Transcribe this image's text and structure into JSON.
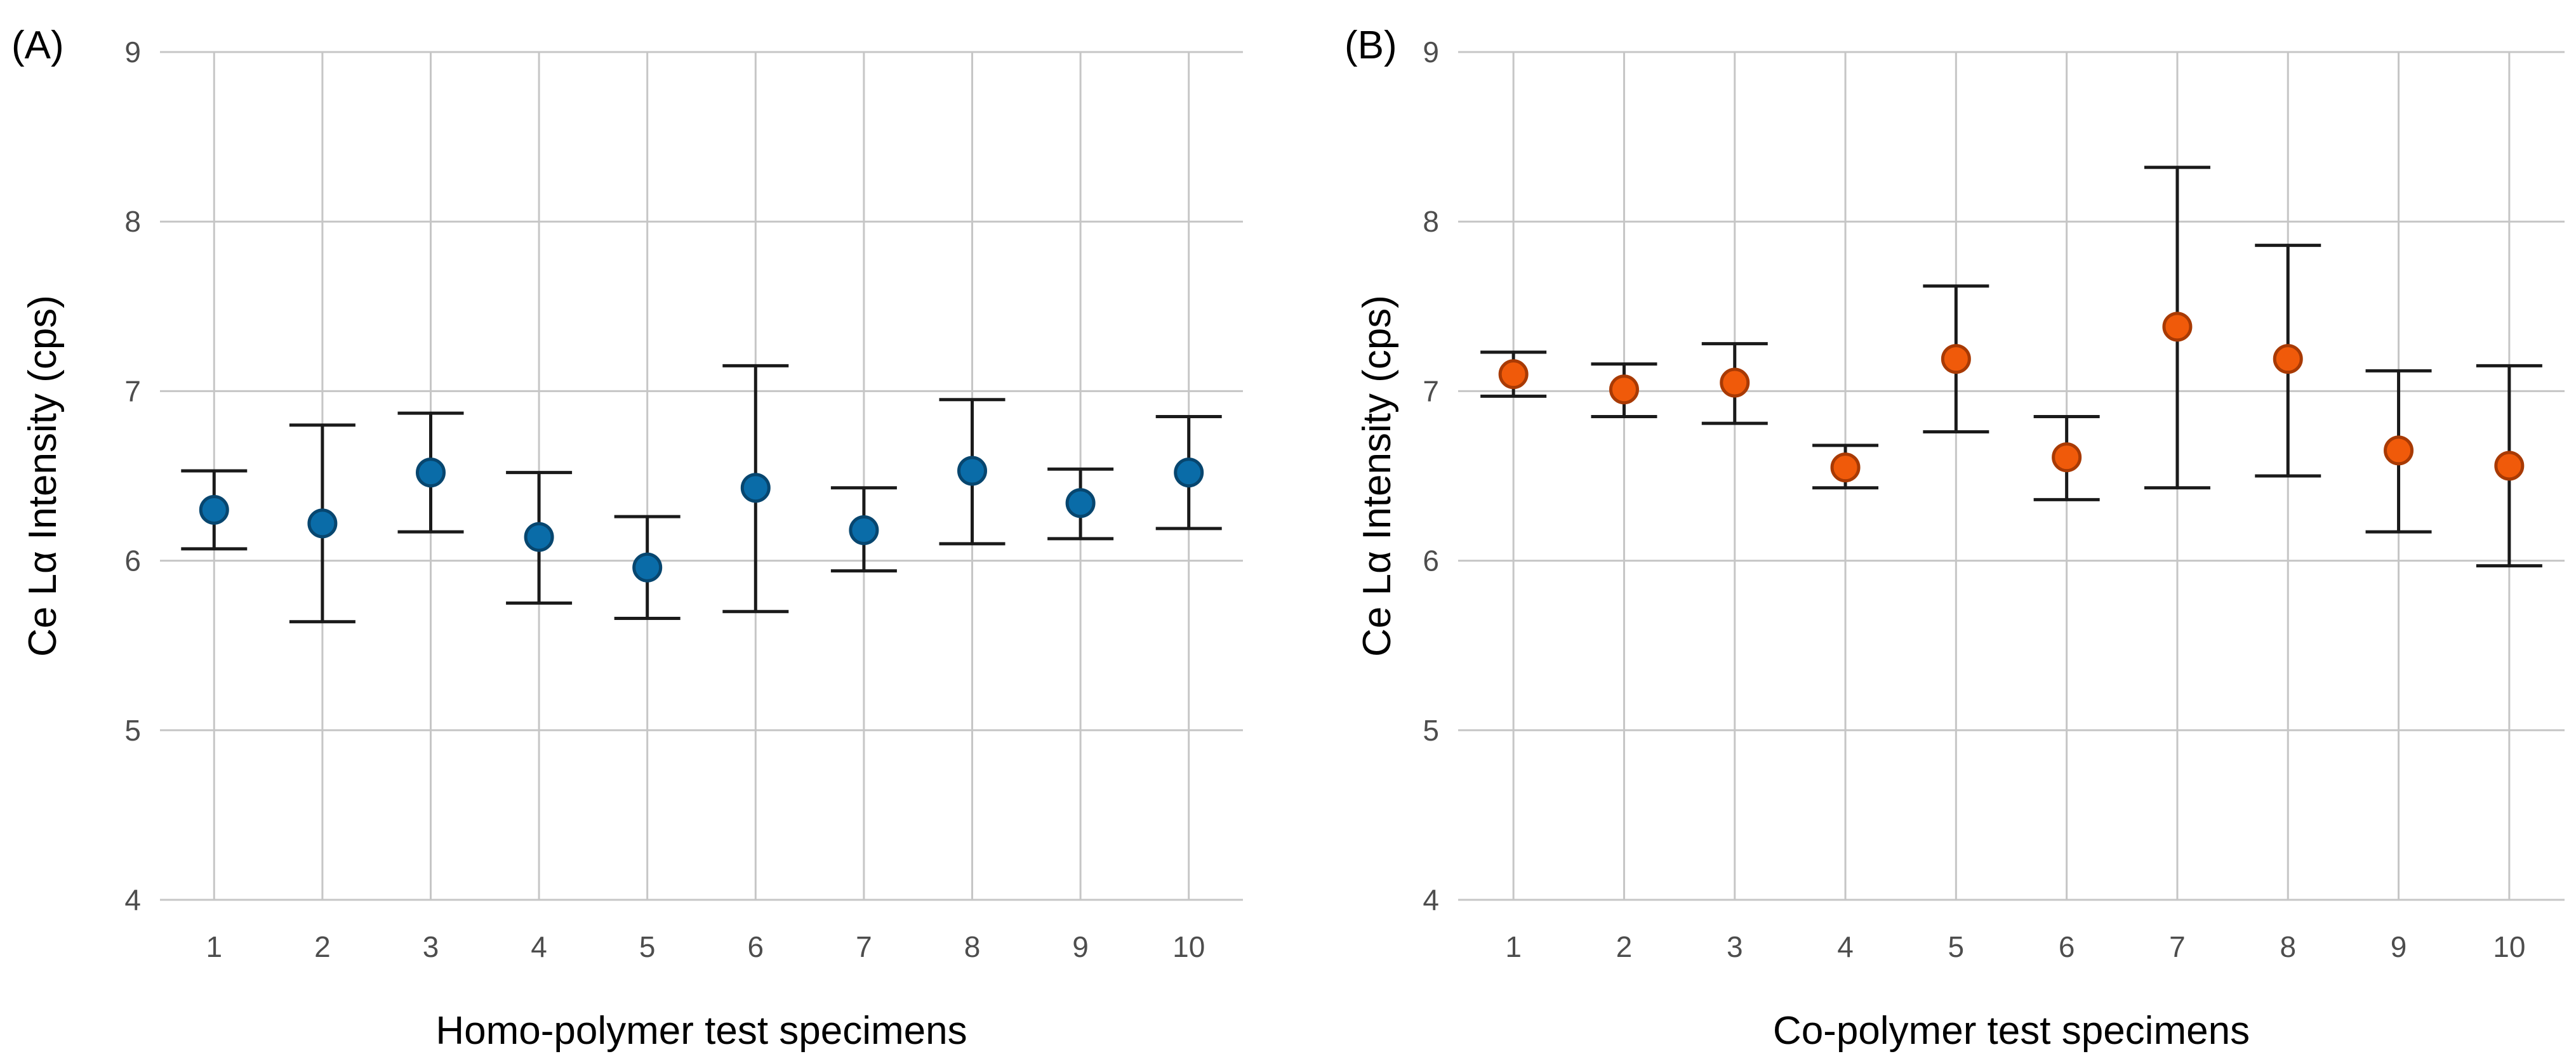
{
  "chart_data": [
    {
      "type": "scatter",
      "panel_label": "(A)",
      "xlabel": "Homo-polymer test specimens",
      "ylabel": "Ce Lα Intensity (cps)",
      "ylim": [
        4,
        9
      ],
      "yticks": [
        4,
        5,
        6,
        7,
        8,
        9
      ],
      "categories": [
        "1",
        "2",
        "3",
        "4",
        "5",
        "6",
        "7",
        "8",
        "9",
        "10"
      ],
      "point_color": "#0a6ca8",
      "point_edge_color": "#07466f",
      "grid": true,
      "series": [
        {
          "name": "Homo-polymer",
          "values": [
            6.3,
            6.22,
            6.52,
            6.14,
            5.96,
            6.43,
            6.18,
            6.53,
            6.34,
            6.52
          ],
          "lower": [
            6.07,
            5.64,
            6.17,
            5.75,
            5.66,
            5.7,
            5.94,
            6.1,
            6.13,
            6.19
          ],
          "upper": [
            6.53,
            6.8,
            6.87,
            6.52,
            6.26,
            7.15,
            6.43,
            6.95,
            6.54,
            6.85
          ]
        }
      ]
    },
    {
      "type": "scatter",
      "panel_label": "(B)",
      "xlabel": "Co-polymer test specimens",
      "ylabel": "Ce Lα Intensity (cps)",
      "ylim": [
        4,
        9
      ],
      "yticks": [
        4,
        5,
        6,
        7,
        8,
        9
      ],
      "categories": [
        "1",
        "2",
        "3",
        "4",
        "5",
        "6",
        "7",
        "8",
        "9",
        "10"
      ],
      "point_color": "#f05a0a",
      "point_edge_color": "#a83a04",
      "grid": true,
      "series": [
        {
          "name": "Co-polymer",
          "values": [
            7.1,
            7.01,
            7.05,
            6.55,
            7.19,
            6.61,
            7.38,
            7.19,
            6.65,
            6.56
          ],
          "lower": [
            6.97,
            6.85,
            6.81,
            6.43,
            6.76,
            6.36,
            6.43,
            6.5,
            6.17,
            5.97
          ],
          "upper": [
            7.23,
            7.16,
            7.28,
            6.68,
            7.62,
            6.85,
            8.32,
            7.86,
            7.12,
            7.15
          ]
        }
      ]
    }
  ]
}
